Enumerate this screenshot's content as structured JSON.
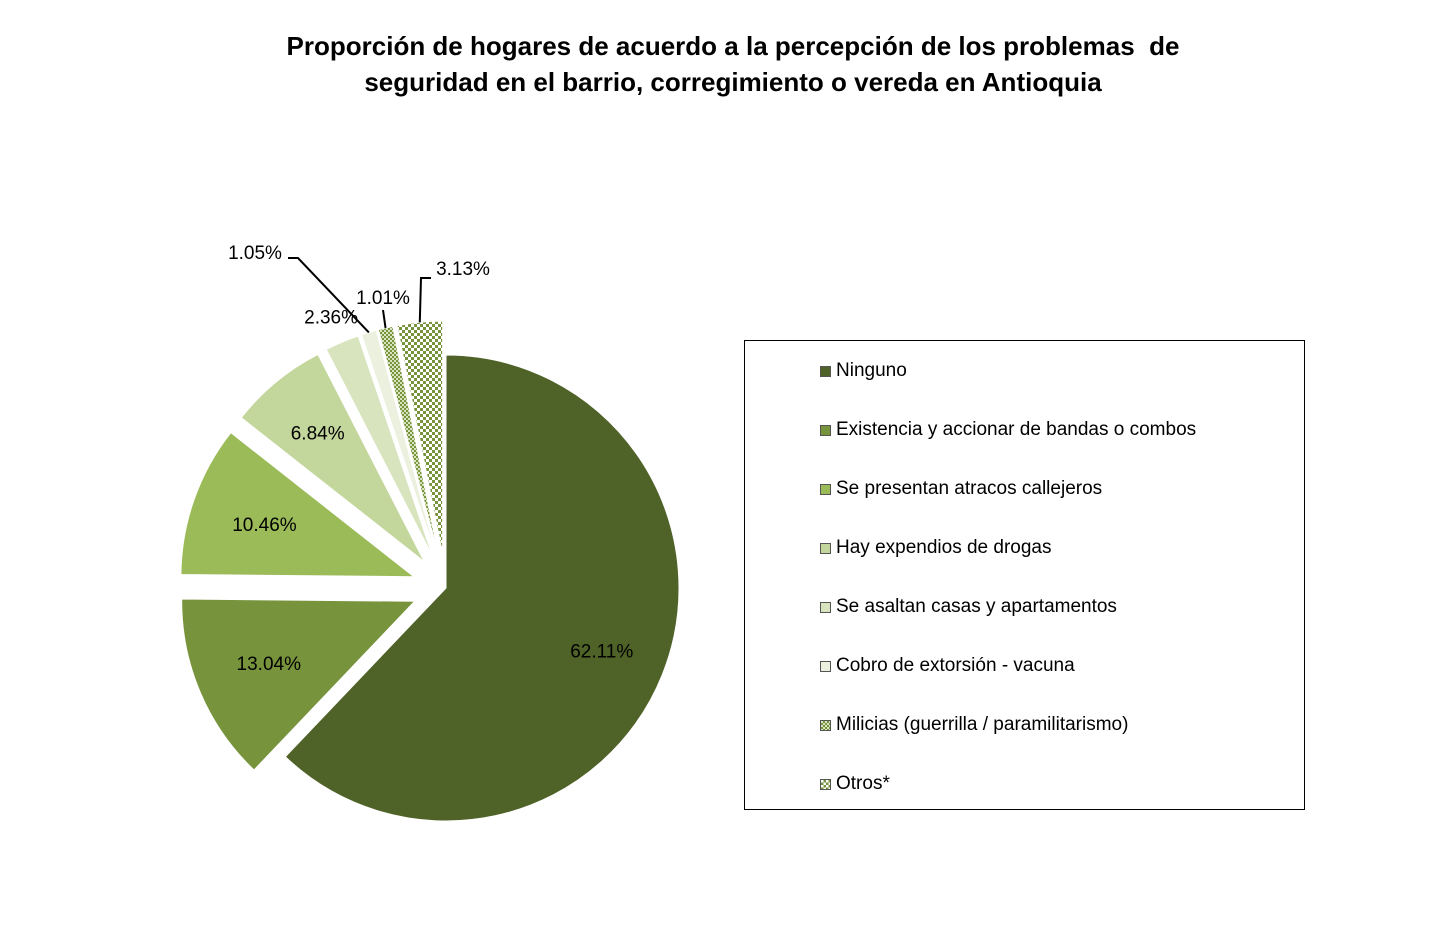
{
  "title_lines": [
    "Proporción de hogares de acuerdo a la percepción de los problemas  de",
    "seguridad en el barrio, corregimiento o vereda en Antioquia"
  ],
  "chart_data": {
    "type": "pie",
    "title": "Proporción de hogares de acuerdo a la percepción de los problemas  de seguridad en el barrio, corregimiento o vereda en Antioquia",
    "legend_position": "right",
    "slices": [
      {
        "name": "Ninguno",
        "value": 62.11,
        "label": "62.11%",
        "color": "#4f6228",
        "pattern": "solid",
        "exploded": false
      },
      {
        "name": "Existencia y accionar de bandas o combos",
        "value": 13.04,
        "label": "13.04%",
        "color": "#77933c",
        "pattern": "solid",
        "exploded": true
      },
      {
        "name": "Se presentan atracos callejeros",
        "value": 10.46,
        "label": "10.46%",
        "color": "#9bbb59",
        "pattern": "solid",
        "exploded": true
      },
      {
        "name": "Hay expendios de drogas",
        "value": 6.84,
        "label": "6.84%",
        "color": "#c3d69b",
        "pattern": "solid",
        "exploded": true
      },
      {
        "name": "Se asaltan casas y apartamentos",
        "value": 2.36,
        "label": "2.36%",
        "color": "#d7e4bd",
        "pattern": "solid",
        "exploded": true
      },
      {
        "name": "Cobro de extorsión - vacuna",
        "value": 1.05,
        "label": "1.05%",
        "color": "#ebf1de",
        "pattern": "solid",
        "exploded": true
      },
      {
        "name": "Milicias (guerrilla / paramilitarismo)",
        "value": 1.01,
        "label": "1.01%",
        "color": "#9bbb59",
        "pattern": "dots",
        "exploded": true
      },
      {
        "name": "Otros*",
        "value": 3.13,
        "label": "3.13%",
        "color": "#77933c",
        "pattern": "checker",
        "exploded": true
      }
    ]
  }
}
